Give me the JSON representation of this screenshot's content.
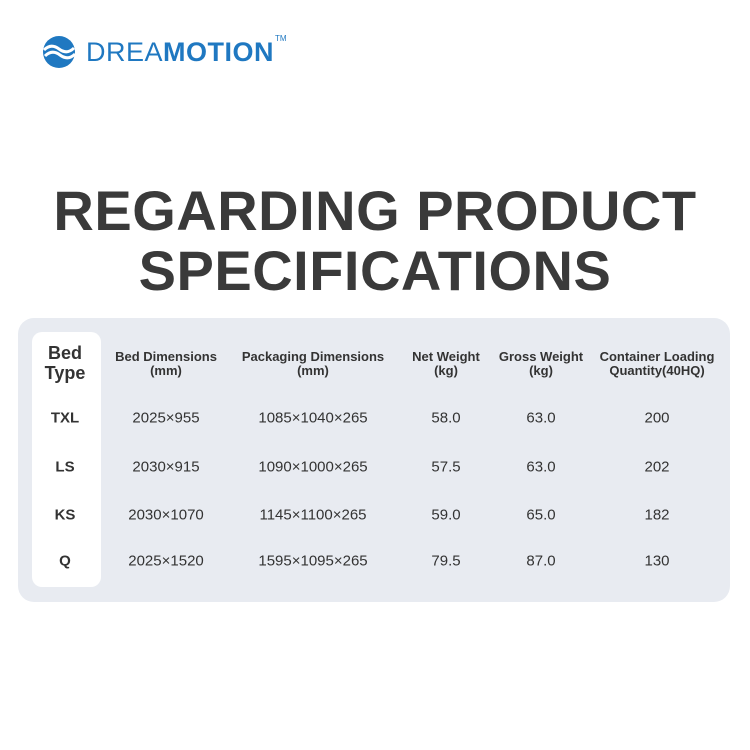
{
  "logo": {
    "light": "DREA",
    "bold": "MOTION",
    "trademark": "TM"
  },
  "title": [
    "REGARDING PRODUCT",
    "SPECIFICATIONS"
  ],
  "table": {
    "header": [
      [
        "Bed",
        "Type"
      ],
      [
        "Bed Dimensions",
        "(mm)"
      ],
      [
        "Packaging Dimensions",
        "(mm)"
      ],
      [
        "Net Weight",
        "(kg)"
      ],
      [
        "Gross Weight",
        "(kg)"
      ],
      [
        "Container Loading",
        "Quantity(40HQ)"
      ]
    ],
    "rows": [
      [
        "TXL",
        "2025×955",
        "1085×1040×265",
        "58.0",
        "63.0",
        "200"
      ],
      [
        "LS",
        "2030×915",
        "1090×1000×265",
        "57.5",
        "63.0",
        "202"
      ],
      [
        "KS",
        "2030×1070",
        "1145×1100×265",
        "59.0",
        "65.0",
        "182"
      ],
      [
        "Q",
        "2025×1520",
        "1595×1095×265",
        "79.5",
        "87.0",
        "130"
      ]
    ]
  }
}
